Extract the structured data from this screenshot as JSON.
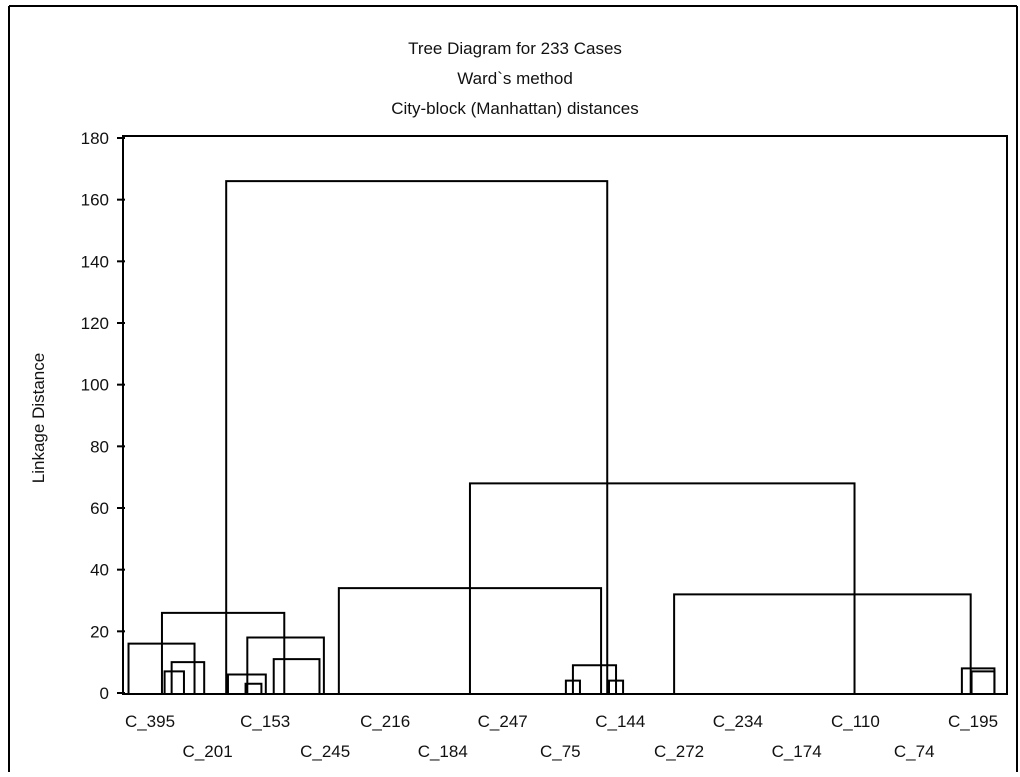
{
  "chart_data": {
    "type": "dendrogram",
    "title": [
      "Tree Diagram for 233 Cases",
      "Ward`s method",
      "City-block (Manhattan) distances"
    ],
    "ylabel": "Linkage Distance",
    "ylim": [
      0,
      180
    ],
    "yticks": [
      0,
      20,
      40,
      60,
      80,
      100,
      120,
      140,
      160,
      180
    ],
    "xlim": [
      0,
      1
    ],
    "leaf_labels": [
      {
        "text": "C_395",
        "x": 0.028,
        "row": 0
      },
      {
        "text": "C_201",
        "x": 0.077,
        "row": 1
      },
      {
        "text": "C_153",
        "x": 0.126,
        "row": 0
      },
      {
        "text": "C_245",
        "x": 0.177,
        "row": 1
      },
      {
        "text": "C_216",
        "x": 0.228,
        "row": 0
      },
      {
        "text": "C_184",
        "x": 0.277,
        "row": 1
      },
      {
        "text": "C_247",
        "x": 0.328,
        "row": 0
      },
      {
        "text": "C_75",
        "x": 0.377,
        "row": 1
      },
      {
        "text": "C_144",
        "x": 0.428,
        "row": 0
      },
      {
        "text": "C_272",
        "x": 0.478,
        "row": 1
      },
      {
        "text": "C_234",
        "x": 0.528,
        "row": 0
      },
      {
        "text": "C_174",
        "x": 0.578,
        "row": 1
      },
      {
        "text": "C_110",
        "x": 0.628,
        "row": 0
      },
      {
        "text": "C_74",
        "x": 0.678,
        "row": 1
      },
      {
        "text": "C_195",
        "x": 0.728,
        "row": 0
      }
    ],
    "merges": [
      {
        "left": 0.115,
        "right": 0.548,
        "height": 166
      },
      {
        "left": 0.042,
        "right": 0.181,
        "height": 26
      },
      {
        "left": 0.004,
        "right": 0.079,
        "height": 16
      },
      {
        "left": 0.053,
        "right": 0.09,
        "height": 10
      },
      {
        "left": 0.045,
        "right": 0.067,
        "height": 7
      },
      {
        "left": 0.139,
        "right": 0.226,
        "height": 18
      },
      {
        "left": 0.117,
        "right": 0.16,
        "height": 6
      },
      {
        "left": 0.137,
        "right": 0.155,
        "height": 3
      },
      {
        "left": 0.169,
        "right": 0.221,
        "height": 11
      },
      {
        "left": 0.392,
        "right": 0.829,
        "height": 68
      },
      {
        "left": 0.243,
        "right": 0.541,
        "height": 34
      },
      {
        "left": 0.509,
        "right": 0.558,
        "height": 9
      },
      {
        "left": 0.501,
        "right": 0.517,
        "height": 4
      },
      {
        "left": 0.55,
        "right": 0.566,
        "height": 4
      },
      {
        "left": 0.624,
        "right": 0.961,
        "height": 32
      },
      {
        "left": 0.951,
        "right": 0.988,
        "height": 8
      },
      {
        "left": 0.962,
        "right": 0.988,
        "height": 7
      }
    ],
    "grid": false
  }
}
